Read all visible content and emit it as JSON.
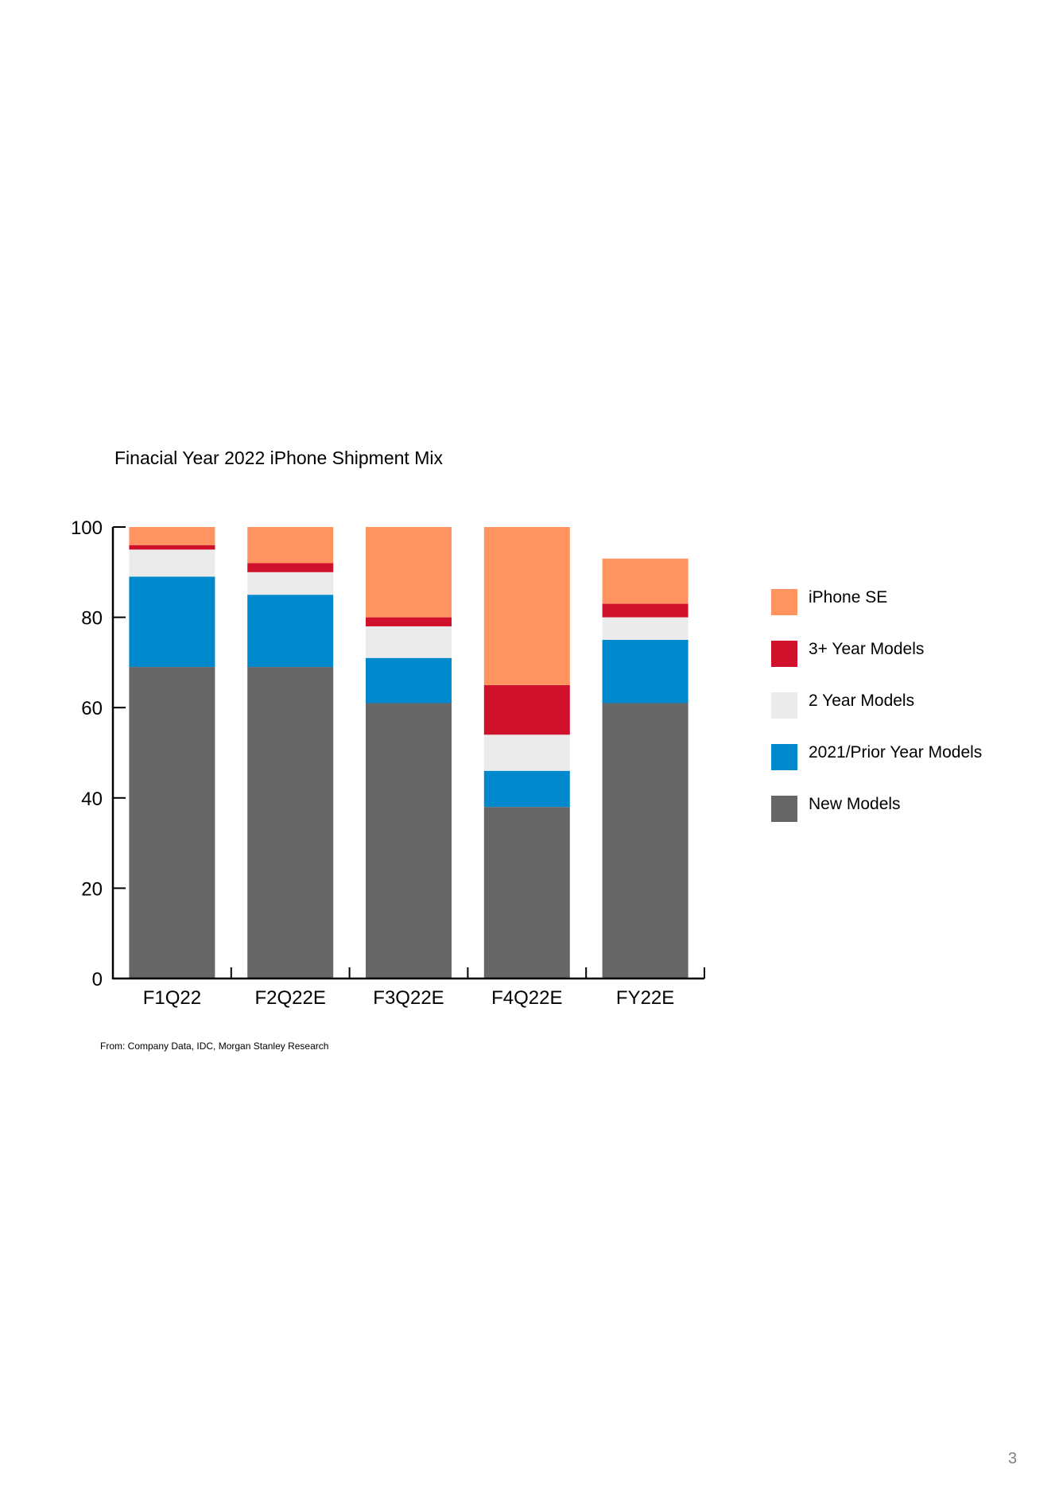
{
  "chart_data": {
    "type": "bar",
    "stacked": true,
    "title": "Finacial Year 2022 iPhone Shipment Mix",
    "categories": [
      "F1Q22",
      "F2Q22E",
      "F3Q22E",
      "F4Q22E",
      "FY22E"
    ],
    "series": [
      {
        "name": "New Models",
        "color": "#666666",
        "values": [
          69,
          69,
          61,
          38,
          61
        ]
      },
      {
        "name": "2021/Prior Year Models",
        "color": "#0088cc",
        "values": [
          20,
          16,
          10,
          8,
          14
        ]
      },
      {
        "name": "2 Year Models",
        "color": "#ebebeb",
        "values": [
          6,
          5,
          7,
          8,
          5
        ]
      },
      {
        "name": "3+ Year Models",
        "color": "#d0112b",
        "values": [
          1,
          2,
          2,
          11,
          3
        ]
      },
      {
        "name": "iPhone SE",
        "color": "#ff9460",
        "values": [
          4,
          8,
          20,
          35,
          10
        ]
      }
    ],
    "y_ticks": [
      "0",
      "20",
      "40",
      "60",
      "80",
      "100"
    ],
    "ylim": [
      0,
      100
    ],
    "xlabel": "",
    "ylabel": "",
    "grid": false,
    "legend_position": "right"
  },
  "source_note": "From: Company Data, IDC, Morgan Stanley Research",
  "page_number": "3"
}
